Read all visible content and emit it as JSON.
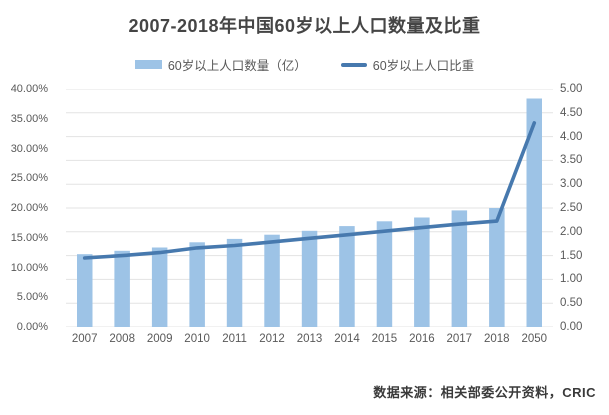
{
  "title": "2007-2018年中国60岁以上人口数量及比重",
  "legend": [
    {
      "label": "60岁以上人口数量（亿）",
      "type": "bar",
      "color": "#9dc3e6"
    },
    {
      "label": "60岁以上人口比重",
      "type": "line",
      "color": "#4779ae"
    }
  ],
  "footer": "数据来源：相关部委公开资料，CRIC",
  "colors": {
    "bar_fill": "#9dc3e6",
    "line_stroke": "#4779ae",
    "gridline": "#e3e3e3",
    "tick_text": "#595959",
    "title_text": "#454545",
    "footer_text": "#3a3a3a",
    "background": "#ffffff"
  },
  "chart_data": {
    "type": "bar",
    "subtype": "combo-bar-line-dual-axis",
    "title": "2007-2018年中国60岁以上人口数量及比重",
    "categories": [
      "2007",
      "2008",
      "2009",
      "2010",
      "2011",
      "2012",
      "2013",
      "2014",
      "2015",
      "2016",
      "2017",
      "2018",
      "2050"
    ],
    "series": [
      {
        "name": "60岁以上人口数量（亿）",
        "type": "bar",
        "axis": "right",
        "values": [
          1.53,
          1.6,
          1.67,
          1.78,
          1.85,
          1.94,
          2.02,
          2.12,
          2.22,
          2.3,
          2.45,
          2.5,
          4.8
        ]
      },
      {
        "name": "60岁以上人口比重",
        "type": "line",
        "axis": "left",
        "unit": "%",
        "values": [
          11.6,
          12.0,
          12.5,
          13.3,
          13.7,
          14.3,
          14.9,
          15.5,
          16.1,
          16.7,
          17.3,
          17.8,
          34.3
        ]
      }
    ],
    "left_axis": {
      "min": 0,
      "max": 40,
      "step": 5,
      "format": "percent",
      "ticks": [
        "40.00%",
        "35.00%",
        "30.00%",
        "25.00%",
        "20.00%",
        "15.00%",
        "10.00%",
        "5.00%",
        "0.00%"
      ]
    },
    "right_axis": {
      "min": 0,
      "max": 5,
      "step": 0.5,
      "format": "number",
      "ticks": [
        "5.00",
        "4.50",
        "4.00",
        "3.50",
        "3.00",
        "2.50",
        "2.00",
        "1.50",
        "1.00",
        "0.50",
        "0.00"
      ]
    },
    "grid": "horizontal gridlines aligned to right axis (11 lines)",
    "legend_position": "top",
    "xlabel": "",
    "ylabel_left": "",
    "ylabel_right": ""
  }
}
